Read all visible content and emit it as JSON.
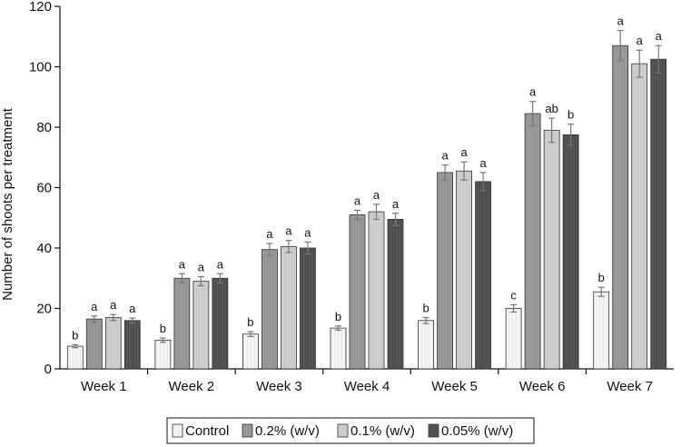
{
  "chart_data": {
    "type": "bar",
    "title": "",
    "xlabel": "",
    "ylabel": "Number of shoots per treatment",
    "ylim": [
      0,
      120
    ],
    "yticks": [
      0,
      20,
      40,
      60,
      80,
      100,
      120
    ],
    "grid": false,
    "legend_position": "bottom",
    "categories": [
      "Week 1",
      "Week 2",
      "Week 3",
      "Week 4",
      "Week 5",
      "Week 6",
      "Week 7"
    ],
    "series": [
      {
        "name": "Control",
        "color": "#f4f4f4",
        "values": [
          7.5,
          9.5,
          11.5,
          13.5,
          16,
          20,
          25.5
        ],
        "errors": [
          0.5,
          0.7,
          0.8,
          0.7,
          1.0,
          1.2,
          1.5
        ],
        "letters": [
          "b",
          "b",
          "b",
          "b",
          "b",
          "c",
          "b"
        ]
      },
      {
        "name": "0.2% (w/v)",
        "color": "#9a9a9a",
        "values": [
          16.5,
          30,
          39.5,
          51,
          65,
          84.5,
          107
        ],
        "errors": [
          1.0,
          1.5,
          2.0,
          1.5,
          2.5,
          4.0,
          5.0
        ],
        "letters": [
          "a",
          "a",
          "a",
          "a",
          "a",
          "a",
          "a"
        ]
      },
      {
        "name": "0.1% (w/v)",
        "color": "#cfcfcf",
        "values": [
          17,
          29,
          40.5,
          52,
          65.5,
          79,
          101
        ],
        "errors": [
          1.0,
          1.5,
          2.0,
          2.5,
          3.0,
          4.0,
          4.5
        ],
        "letters": [
          "a",
          "a",
          "a",
          "a",
          "a",
          "ab",
          "a"
        ]
      },
      {
        "name": "0.05% (w/v)",
        "color": "#555555",
        "values": [
          16,
          30,
          40,
          49.5,
          62,
          77.5,
          102.5
        ],
        "errors": [
          0.8,
          1.5,
          2.0,
          2.0,
          3.0,
          3.5,
          4.5
        ],
        "letters": [
          "a",
          "a",
          "a",
          "a",
          "a",
          "b",
          "a"
        ]
      }
    ]
  }
}
